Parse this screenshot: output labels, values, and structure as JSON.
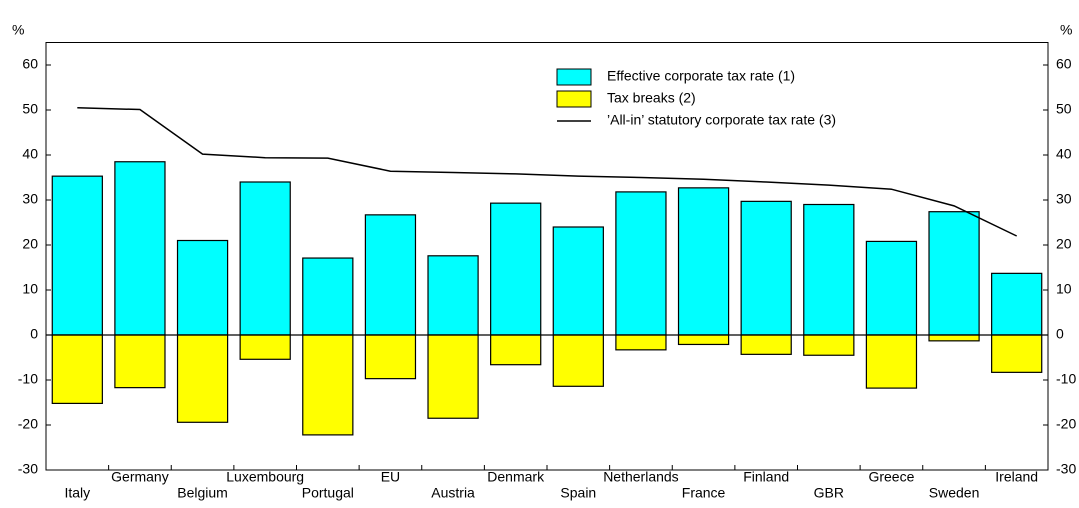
{
  "chart_data": {
    "type": "bar",
    "unit_label": "%",
    "categories": [
      "Italy",
      "Germany",
      "Belgium",
      "Luxembourg",
      "Portugal",
      "EU",
      "Austria",
      "Denmark",
      "Spain",
      "Netherlands",
      "France",
      "Finland",
      "GBR",
      "Greece",
      "Sweden",
      "Ireland"
    ],
    "series": [
      {
        "name": "Effective corporate tax rate (1)",
        "type": "bar",
        "color": "#00ffff",
        "values": [
          35.3,
          38.5,
          21,
          34,
          17.1,
          26.7,
          17.6,
          29.3,
          24,
          31.8,
          32.7,
          29.7,
          29,
          20.8,
          27.4,
          13.7
        ]
      },
      {
        "name": "Tax breaks (2)",
        "type": "bar",
        "color": "#ffff00",
        "values": [
          -15.2,
          -11.7,
          -19.4,
          -5.4,
          -22.2,
          -9.7,
          -18.5,
          -6.6,
          -11.4,
          -3.3,
          -2.1,
          -4.3,
          -4.5,
          -11.8,
          -1.3,
          -8.3
        ]
      },
      {
        "name": "’All-in’ statutory corporate tax rate (3)",
        "type": "line",
        "color": "#000000",
        "values": [
          50.5,
          50.1,
          40.2,
          39.4,
          39.3,
          36.4,
          36.1,
          35.8,
          35.3,
          35.0,
          34.6,
          34.0,
          33.3,
          32.4,
          28.7,
          22.0
        ]
      }
    ],
    "ylim": [
      -30,
      65
    ],
    "yticks": [
      -30,
      -20,
      -10,
      0,
      10,
      20,
      30,
      40,
      50,
      60
    ]
  }
}
